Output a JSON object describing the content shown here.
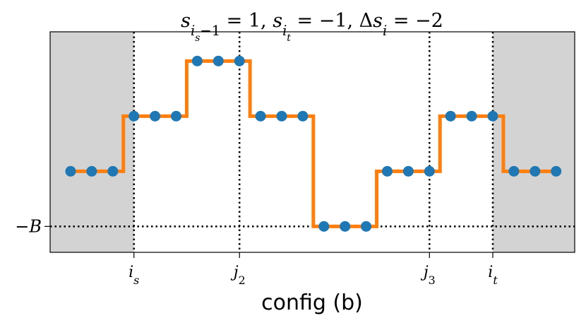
{
  "chart_data": {
    "type": "step",
    "title": "s_{i_s−1} = 1, s_{i_t} = −1, Δs_i = −2",
    "x_label": "config (b)",
    "x": [
      0,
      1,
      2,
      3,
      4,
      5,
      6,
      7,
      8,
      9,
      10,
      11,
      12,
      13,
      14,
      15,
      16,
      17,
      18,
      19,
      20,
      21,
      22,
      23
    ],
    "values": [
      0,
      0,
      0,
      1,
      1,
      1,
      2,
      2,
      2,
      1,
      1,
      1,
      -1,
      -1,
      -1,
      0,
      0,
      0,
      1,
      1,
      1,
      0,
      0,
      0
    ],
    "line_color": "#ff7f0e",
    "marker_color": "#1f77b4",
    "shade_color": "#d3d3d3",
    "shaded_spans": [
      [
        -0.97,
        3
      ],
      [
        20,
        23.88
      ]
    ],
    "xlim": [
      -0.97,
      23.88
    ],
    "ylim": [
      -1.47,
      2.53
    ],
    "xticks": [
      {
        "value": 3,
        "label": "i_s"
      },
      {
        "value": 8,
        "label": "j_2"
      },
      {
        "value": 17,
        "label": "j_3"
      },
      {
        "value": 20,
        "label": "i_t"
      }
    ],
    "yticks": [
      {
        "value": -1,
        "label": "−B"
      }
    ],
    "grid": true
  }
}
